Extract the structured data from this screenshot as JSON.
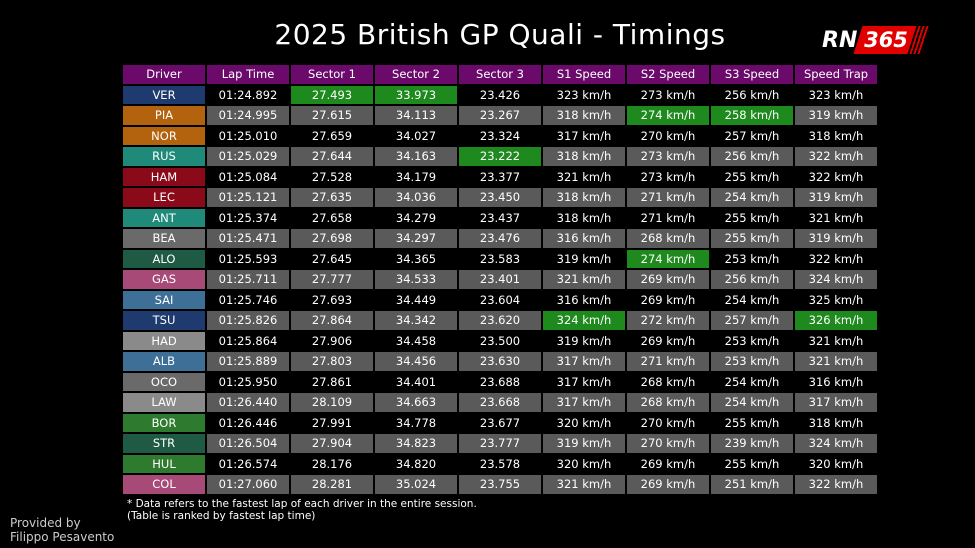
{
  "title": "2025 British GP Quali - Timings",
  "logo": {
    "rn": "RN",
    "num": "365"
  },
  "columns": [
    "Driver",
    "Lap Time",
    "Sector 1",
    "Sector 2",
    "Sector 3",
    "S1 Speed",
    "S2 Speed",
    "S3 Speed",
    "Speed Trap"
  ],
  "rows": [
    {
      "driver": "VER",
      "color": "#1f3a6e",
      "lap": "01:24.892",
      "s1": "27.493",
      "s2": "33.973",
      "s3": "23.426",
      "sp1": "323 km/h",
      "sp2": "273 km/h",
      "sp3": "256 km/h",
      "trap": "323 km/h",
      "best": [
        "s1",
        "s2"
      ]
    },
    {
      "driver": "PIA",
      "color": "#b3620e",
      "lap": "01:24.995",
      "s1": "27.615",
      "s2": "34.113",
      "s3": "23.267",
      "sp1": "318 km/h",
      "sp2": "274 km/h",
      "sp3": "258 km/h",
      "trap": "319 km/h",
      "best": [
        "sp2",
        "sp3"
      ]
    },
    {
      "driver": "NOR",
      "color": "#b3620e",
      "lap": "01:25.010",
      "s1": "27.659",
      "s2": "34.027",
      "s3": "23.324",
      "sp1": "317 km/h",
      "sp2": "270 km/h",
      "sp3": "257 km/h",
      "trap": "318 km/h",
      "best": []
    },
    {
      "driver": "RUS",
      "color": "#1f8a7a",
      "lap": "01:25.029",
      "s1": "27.644",
      "s2": "34.163",
      "s3": "23.222",
      "sp1": "318 km/h",
      "sp2": "273 km/h",
      "sp3": "256 km/h",
      "trap": "322 km/h",
      "best": [
        "s3"
      ]
    },
    {
      "driver": "HAM",
      "color": "#8a0a1a",
      "lap": "01:25.084",
      "s1": "27.528",
      "s2": "34.179",
      "s3": "23.377",
      "sp1": "321 km/h",
      "sp2": "273 km/h",
      "sp3": "255 km/h",
      "trap": "322 km/h",
      "best": []
    },
    {
      "driver": "LEC",
      "color": "#8a0a1a",
      "lap": "01:25.121",
      "s1": "27.635",
      "s2": "34.036",
      "s3": "23.450",
      "sp1": "318 km/h",
      "sp2": "271 km/h",
      "sp3": "254 km/h",
      "trap": "319 km/h",
      "best": []
    },
    {
      "driver": "ANT",
      "color": "#1f8a7a",
      "lap": "01:25.374",
      "s1": "27.658",
      "s2": "34.279",
      "s3": "23.437",
      "sp1": "318 km/h",
      "sp2": "271 km/h",
      "sp3": "255 km/h",
      "trap": "321 km/h",
      "best": []
    },
    {
      "driver": "BEA",
      "color": "#6a6a6a",
      "lap": "01:25.471",
      "s1": "27.698",
      "s2": "34.297",
      "s3": "23.476",
      "sp1": "316 km/h",
      "sp2": "268 km/h",
      "sp3": "255 km/h",
      "trap": "319 km/h",
      "best": []
    },
    {
      "driver": "ALO",
      "color": "#1e5a44",
      "lap": "01:25.593",
      "s1": "27.645",
      "s2": "34.365",
      "s3": "23.583",
      "sp1": "319 km/h",
      "sp2": "274 km/h",
      "sp3": "253 km/h",
      "trap": "322 km/h",
      "best": [
        "sp2"
      ]
    },
    {
      "driver": "GAS",
      "color": "#a84a78",
      "lap": "01:25.711",
      "s1": "27.777",
      "s2": "34.533",
      "s3": "23.401",
      "sp1": "321 km/h",
      "sp2": "269 km/h",
      "sp3": "256 km/h",
      "trap": "324 km/h",
      "best": []
    },
    {
      "driver": "SAI",
      "color": "#3e6f96",
      "lap": "01:25.746",
      "s1": "27.693",
      "s2": "34.449",
      "s3": "23.604",
      "sp1": "316 km/h",
      "sp2": "269 km/h",
      "sp3": "254 km/h",
      "trap": "325 km/h",
      "best": []
    },
    {
      "driver": "TSU",
      "color": "#1f3a6e",
      "lap": "01:25.826",
      "s1": "27.864",
      "s2": "34.342",
      "s3": "23.620",
      "sp1": "324 km/h",
      "sp2": "272 km/h",
      "sp3": "257 km/h",
      "trap": "326 km/h",
      "best": [
        "sp1",
        "trap"
      ]
    },
    {
      "driver": "HAD",
      "color": "#8a8a8a",
      "lap": "01:25.864",
      "s1": "27.906",
      "s2": "34.458",
      "s3": "23.500",
      "sp1": "319 km/h",
      "sp2": "269 km/h",
      "sp3": "253 km/h",
      "trap": "321 km/h",
      "best": []
    },
    {
      "driver": "ALB",
      "color": "#3e6f96",
      "lap": "01:25.889",
      "s1": "27.803",
      "s2": "34.456",
      "s3": "23.630",
      "sp1": "317 km/h",
      "sp2": "271 km/h",
      "sp3": "253 km/h",
      "trap": "321 km/h",
      "best": []
    },
    {
      "driver": "OCO",
      "color": "#6a6a6a",
      "lap": "01:25.950",
      "s1": "27.861",
      "s2": "34.401",
      "s3": "23.688",
      "sp1": "317 km/h",
      "sp2": "268 km/h",
      "sp3": "254 km/h",
      "trap": "316 km/h",
      "best": []
    },
    {
      "driver": "LAW",
      "color": "#8a8a8a",
      "lap": "01:26.440",
      "s1": "28.109",
      "s2": "34.663",
      "s3": "23.668",
      "sp1": "317 km/h",
      "sp2": "268 km/h",
      "sp3": "254 km/h",
      "trap": "317 km/h",
      "best": []
    },
    {
      "driver": "BOR",
      "color": "#2e7a2e",
      "lap": "01:26.446",
      "s1": "27.991",
      "s2": "34.778",
      "s3": "23.677",
      "sp1": "320 km/h",
      "sp2": "270 km/h",
      "sp3": "255 km/h",
      "trap": "318 km/h",
      "best": []
    },
    {
      "driver": "STR",
      "color": "#1e5a44",
      "lap": "01:26.504",
      "s1": "27.904",
      "s2": "34.823",
      "s3": "23.777",
      "sp1": "319 km/h",
      "sp2": "270 km/h",
      "sp3": "239 km/h",
      "trap": "324 km/h",
      "best": []
    },
    {
      "driver": "HUL",
      "color": "#2e7a2e",
      "lap": "01:26.574",
      "s1": "28.176",
      "s2": "34.820",
      "s3": "23.578",
      "sp1": "320 km/h",
      "sp2": "269 km/h",
      "sp3": "255 km/h",
      "trap": "320 km/h",
      "best": []
    },
    {
      "driver": "COL",
      "color": "#a84a78",
      "lap": "01:27.060",
      "s1": "28.281",
      "s2": "35.024",
      "s3": "23.755",
      "sp1": "321 km/h",
      "sp2": "269 km/h",
      "sp3": "251 km/h",
      "trap": "322 km/h",
      "best": []
    }
  ],
  "footnote_line1": "* Data refers to the fastest lap of each driver in the entire session.",
  "footnote_line2": "(Table is ranked by fastest lap time)",
  "credit_line1": "Provided by",
  "credit_line2": "Filippo Pesavento",
  "colors": {
    "header": "#6b0a6b",
    "best": "#1e8a1e",
    "row_grey": "#5a5a5a",
    "row_dark": "#000000",
    "logo_red": "#e00000"
  }
}
